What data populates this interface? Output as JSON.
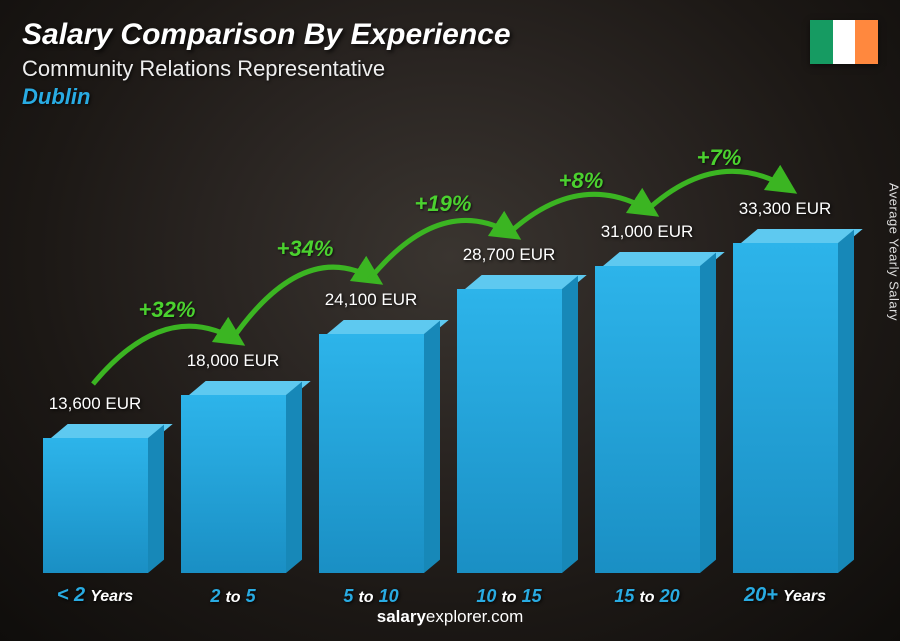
{
  "header": {
    "title": "Salary Comparison By Experience",
    "subtitle": "Community Relations Representative",
    "location": "Dublin"
  },
  "flag": {
    "colors": [
      "#169b62",
      "#ffffff",
      "#ff883e"
    ]
  },
  "side_label": "Average Yearly Salary",
  "footer": {
    "brand_bold": "salary",
    "brand_rest": "explorer.com"
  },
  "chart": {
    "type": "bar",
    "max_value": 33300,
    "max_bar_height": 330,
    "bar_front_color": "#2db4ea",
    "bar_front_gradient_dark": "#1a8fc4",
    "bar_top_color": "#5ec9f0",
    "bar_side_color": "#1788b8",
    "pct_color": "#4bd12f",
    "pct_stroke": "#3bb522",
    "categories": [
      {
        "label_num": "< 2",
        "label_unit": "Years",
        "value": 13600,
        "value_label": "13,600 EUR",
        "pct": null
      },
      {
        "label_num": "2",
        "label_to": "to",
        "label_num2": "5",
        "value": 18000,
        "value_label": "18,000 EUR",
        "pct": "+32%"
      },
      {
        "label_num": "5",
        "label_to": "to",
        "label_num2": "10",
        "value": 24100,
        "value_label": "24,100 EUR",
        "pct": "+34%"
      },
      {
        "label_num": "10",
        "label_to": "to",
        "label_num2": "15",
        "value": 28700,
        "value_label": "28,700 EUR",
        "pct": "+19%"
      },
      {
        "label_num": "15",
        "label_to": "to",
        "label_num2": "20",
        "value": 31000,
        "value_label": "31,000 EUR",
        "pct": "+8%"
      },
      {
        "label_num": "20+",
        "label_unit": "Years",
        "value": 33300,
        "value_label": "33,300 EUR",
        "pct": "+7%"
      }
    ]
  }
}
